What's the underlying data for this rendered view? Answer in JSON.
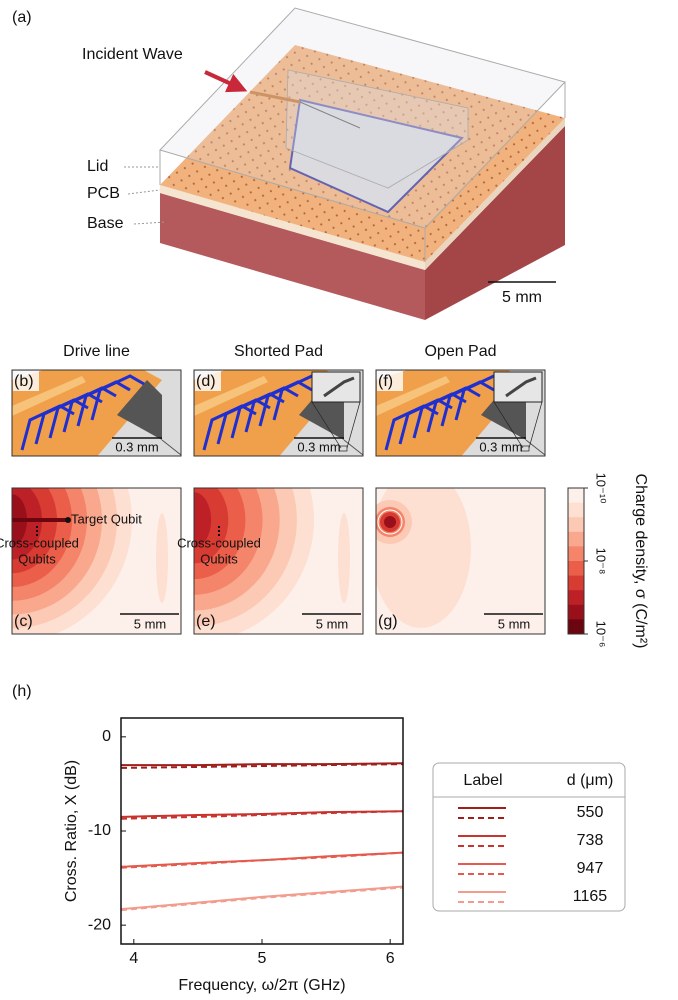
{
  "panel_a": {
    "label": "(a)",
    "incident_wave": "Incident Wave",
    "layers": [
      "Lid",
      "PCB",
      "Base"
    ],
    "scale_bar": "5 mm"
  },
  "column_titles": [
    "Drive line",
    "Shorted Pad",
    "Open Pad"
  ],
  "geometry_panels": [
    {
      "label": "(b)",
      "scale_bar": "0.3 mm"
    },
    {
      "label": "(d)",
      "scale_bar": "0.3 mm"
    },
    {
      "label": "(f)",
      "scale_bar": "0.3 mm"
    }
  ],
  "charge_panels": [
    {
      "label": "(c)",
      "scale_bar": "5 mm",
      "target": "Target Qubit",
      "cross": [
        "Cross-coupled",
        "Qubits"
      ]
    },
    {
      "label": "(e)",
      "scale_bar": "5 mm",
      "cross": [
        "Cross-coupled",
        "Qubits"
      ]
    },
    {
      "label": "(g)",
      "scale_bar": "5 mm"
    }
  ],
  "colorbar": {
    "label": "Charge density, σ (C/m²)",
    "log": true,
    "lim": [
      1e-10,
      1e-06
    ],
    "ticks": [
      {
        "value": 1e-10,
        "label": "10⁻¹⁰"
      },
      {
        "value": 1e-08,
        "label": "10⁻⁸"
      },
      {
        "value": 1e-06,
        "label": "10⁻⁶"
      }
    ],
    "colors": [
      "#fdf0ea",
      "#fde0d2",
      "#fcc9b4",
      "#f9a88e",
      "#f4846a",
      "#ea5e4a",
      "#d83b32",
      "#bd2127",
      "#99101b",
      "#6b0510"
    ]
  },
  "chart_data": {
    "type": "line",
    "panel_label": "(h)",
    "x_label": "Frequency, ω/2π (GHz)",
    "y_label": "Cross. Ratio, X (dB)",
    "x": [
      3.9,
      4.5,
      5,
      5.5,
      6.1
    ],
    "xlim": [
      3.9,
      6.1
    ],
    "ylim": [
      -22,
      2
    ],
    "xticks": [
      4,
      5,
      6
    ],
    "yticks": [
      0,
      -10,
      -20
    ],
    "legend_headers": [
      "Label",
      "d (μm)"
    ],
    "legend_position": "right-outside",
    "series": [
      {
        "name": "550",
        "color": "#9e1f1c",
        "values": [
          -3.0,
          -3.0,
          -2.9,
          -2.9,
          -2.8
        ],
        "dashed_values": [
          -3.3,
          -3.2,
          -3.1,
          -3.0,
          -2.9
        ]
      },
      {
        "name": "738",
        "color": "#c8332d",
        "values": [
          -8.5,
          -8.3,
          -8.2,
          -8.0,
          -7.9
        ],
        "dashed_values": [
          -8.7,
          -8.5,
          -8.3,
          -8.1,
          -7.9
        ]
      },
      {
        "name": "947",
        "color": "#e45a4c",
        "values": [
          -13.8,
          -13.4,
          -13.1,
          -12.7,
          -12.3
        ],
        "dashed_values": [
          -13.9,
          -13.5,
          -13.1,
          -12.8,
          -12.3
        ]
      },
      {
        "name": "1165",
        "color": "#f19c8c",
        "values": [
          -18.3,
          -17.6,
          -17.0,
          -16.5,
          -15.9
        ],
        "dashed_values": [
          -18.4,
          -17.7,
          -17.1,
          -16.6,
          -16.0
        ]
      }
    ]
  }
}
